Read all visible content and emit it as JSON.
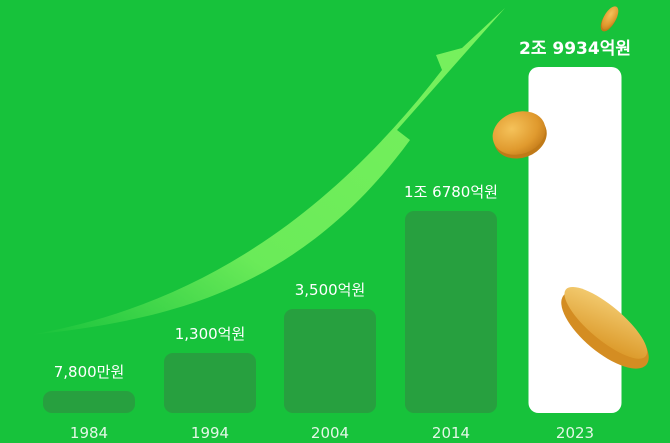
{
  "chart_data": {
    "type": "bar",
    "title": "",
    "xlabel": "",
    "ylabel": "",
    "categories": [
      "1984",
      "1994",
      "2004",
      "2014",
      "2023"
    ],
    "values": [
      78000000,
      130000000000,
      350000000000,
      1678000000000,
      2993400000000
    ],
    "value_labels": [
      "7,800만원",
      "1,300억원",
      "3,500억원",
      "1조 6780억원",
      "2조 9934억원"
    ],
    "highlight_index": 4,
    "grid": false,
    "legend": "none"
  },
  "colors": {
    "background": "#17c23b",
    "bar": "#27a03f",
    "bar_highlight": "#ffffff",
    "arrow": "#79f25e",
    "coin": "#e9a83a"
  },
  "decorations": [
    "growth-arrow",
    "coin-icon",
    "coin-icon",
    "coin-icon"
  ]
}
